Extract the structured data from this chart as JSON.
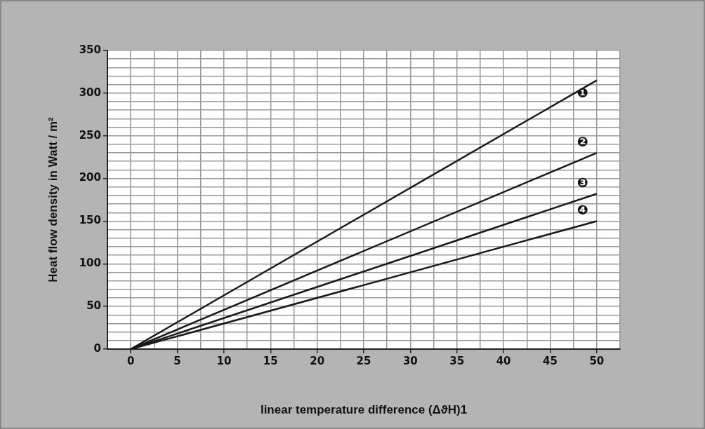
{
  "chart_data": {
    "type": "line",
    "xlabel": "linear temperature difference (ΔϑH)1",
    "ylabel": "Heat flow density in Watt / m²",
    "x": [
      0,
      50
    ],
    "series": [
      {
        "name": "❶",
        "color": "#1a1a1a",
        "values": [
          0,
          315
        ]
      },
      {
        "name": "❷",
        "color": "#1a1a1a",
        "values": [
          0,
          230
        ]
      },
      {
        "name": "❸",
        "color": "#1a1a1a",
        "values": [
          0,
          182
        ]
      },
      {
        "name": "❹",
        "color": "#1a1a1a",
        "values": [
          0,
          150
        ]
      }
    ],
    "xlim": [
      -2.5,
      52.5
    ],
    "xticks": [
      {
        "value": -2.5,
        "label": null
      },
      0,
      {
        "value": 2.5,
        "label": null
      },
      5,
      {
        "value": 7.5,
        "label": null
      },
      10,
      {
        "value": 12.5,
        "label": null
      },
      15,
      {
        "value": 17.5,
        "label": null
      },
      20,
      {
        "value": 22.5,
        "label": null
      },
      25,
      {
        "value": 27.5,
        "label": null
      },
      30,
      {
        "value": 32.5,
        "label": null
      },
      35,
      {
        "value": 37.5,
        "label": null
      },
      40,
      {
        "value": 42.5,
        "label": null
      },
      45,
      {
        "value": 47.5,
        "label": null
      },
      50,
      {
        "value": 52.5,
        "label": null
      }
    ],
    "ylim": [
      0,
      350
    ],
    "yticks": [
      0,
      {
        "value": 10,
        "label": null
      },
      {
        "value": 20,
        "label": null
      },
      {
        "value": 30,
        "label": null
      },
      {
        "value": 40,
        "label": null
      },
      50,
      {
        "value": 60,
        "label": null
      },
      {
        "value": 70,
        "label": null
      },
      {
        "value": 80,
        "label": null
      },
      {
        "value": 90,
        "label": null
      },
      100,
      {
        "value": 110,
        "label": null
      },
      {
        "value": 120,
        "label": null
      },
      {
        "value": 130,
        "label": null
      },
      {
        "value": 140,
        "label": null
      },
      150,
      {
        "value": 160,
        "label": null
      },
      {
        "value": 170,
        "label": null
      },
      {
        "value": 180,
        "label": null
      },
      {
        "value": 190,
        "label": null
      },
      200,
      {
        "value": 210,
        "label": null
      },
      {
        "value": 220,
        "label": null
      },
      {
        "value": 230,
        "label": null
      },
      {
        "value": 240,
        "label": null
      },
      250,
      {
        "value": 260,
        "label": null
      },
      {
        "value": 270,
        "label": null
      },
      {
        "value": 280,
        "label": null
      },
      {
        "value": 290,
        "label": null
      },
      300,
      {
        "value": 310,
        "label": null
      },
      {
        "value": 320,
        "label": null
      },
      {
        "value": 330,
        "label": null
      },
      {
        "value": 340,
        "label": null
      },
      350
    ],
    "grid": true,
    "legend": false,
    "marker": "none",
    "line_style": "solid"
  }
}
